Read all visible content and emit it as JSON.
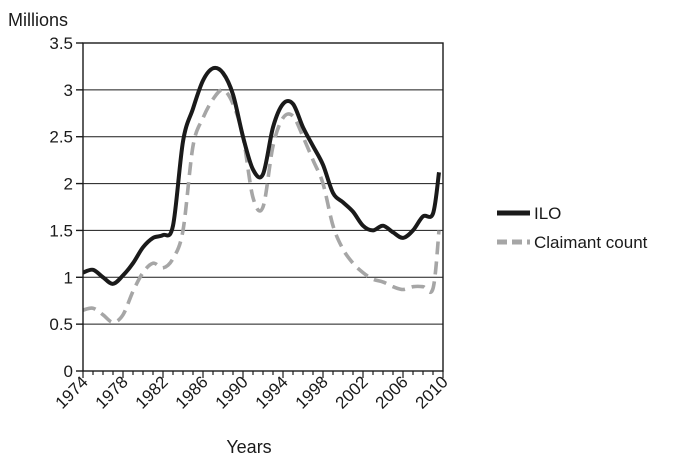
{
  "chart_data": {
    "type": "line",
    "title": "",
    "ylabel": "Millions",
    "xlabel": "Years",
    "xlim": [
      1974,
      2010
    ],
    "ylim": [
      0,
      3.5
    ],
    "x_ticks": [
      "1974",
      "1978",
      "1982",
      "1986",
      "1990",
      "1994",
      "1998",
      "2002",
      "2006",
      "2010"
    ],
    "y_ticks": [
      "0",
      "0.5",
      "1",
      "1.5",
      "2",
      "2.5",
      "3",
      "3.5"
    ],
    "grid": "horizontal",
    "legend_position": "right",
    "series": [
      {
        "name": "ILO",
        "color": "#1a1a1a",
        "style": "solid",
        "points": [
          [
            1974,
            1.05
          ],
          [
            1975,
            1.08
          ],
          [
            1976,
            1.0
          ],
          [
            1977,
            0.93
          ],
          [
            1978,
            1.02
          ],
          [
            1979,
            1.15
          ],
          [
            1980,
            1.32
          ],
          [
            1981,
            1.42
          ],
          [
            1982,
            1.45
          ],
          [
            1983,
            1.55
          ],
          [
            1984,
            2.45
          ],
          [
            1985,
            2.8
          ],
          [
            1986,
            3.1
          ],
          [
            1987,
            3.23
          ],
          [
            1988,
            3.18
          ],
          [
            1989,
            2.95
          ],
          [
            1990,
            2.5
          ],
          [
            1991,
            2.15
          ],
          [
            1992,
            2.1
          ],
          [
            1993,
            2.6
          ],
          [
            1994,
            2.85
          ],
          [
            1995,
            2.85
          ],
          [
            1996,
            2.6
          ],
          [
            1997,
            2.4
          ],
          [
            1998,
            2.2
          ],
          [
            1999,
            1.9
          ],
          [
            2000,
            1.8
          ],
          [
            2001,
            1.7
          ],
          [
            2002,
            1.55
          ],
          [
            2003,
            1.5
          ],
          [
            2004,
            1.55
          ],
          [
            2005,
            1.48
          ],
          [
            2006,
            1.42
          ],
          [
            2007,
            1.5
          ],
          [
            2008,
            1.65
          ],
          [
            2009,
            1.68
          ],
          [
            2009.6,
            2.12
          ]
        ]
      },
      {
        "name": "Claimant count",
        "color": "#a6a6a6",
        "style": "dashed",
        "points": [
          [
            1974,
            0.65
          ],
          [
            1975,
            0.67
          ],
          [
            1976,
            0.6
          ],
          [
            1977,
            0.52
          ],
          [
            1978,
            0.6
          ],
          [
            1979,
            0.85
          ],
          [
            1980,
            1.05
          ],
          [
            1981,
            1.15
          ],
          [
            1982,
            1.1
          ],
          [
            1983,
            1.2
          ],
          [
            1984,
            1.5
          ],
          [
            1985,
            2.4
          ],
          [
            1986,
            2.7
          ],
          [
            1987,
            2.9
          ],
          [
            1988,
            3.0
          ],
          [
            1989,
            2.85
          ],
          [
            1990,
            2.5
          ],
          [
            1991,
            1.85
          ],
          [
            1992,
            1.75
          ],
          [
            1993,
            2.4
          ],
          [
            1994,
            2.7
          ],
          [
            1995,
            2.72
          ],
          [
            1996,
            2.5
          ],
          [
            1997,
            2.25
          ],
          [
            1998,
            2.0
          ],
          [
            1999,
            1.55
          ],
          [
            2000,
            1.3
          ],
          [
            2001,
            1.15
          ],
          [
            2002,
            1.05
          ],
          [
            2003,
            0.98
          ],
          [
            2004,
            0.95
          ],
          [
            2005,
            0.9
          ],
          [
            2006,
            0.87
          ],
          [
            2007,
            0.9
          ],
          [
            2008,
            0.9
          ],
          [
            2009,
            0.88
          ],
          [
            2009.6,
            1.5
          ]
        ]
      }
    ]
  }
}
